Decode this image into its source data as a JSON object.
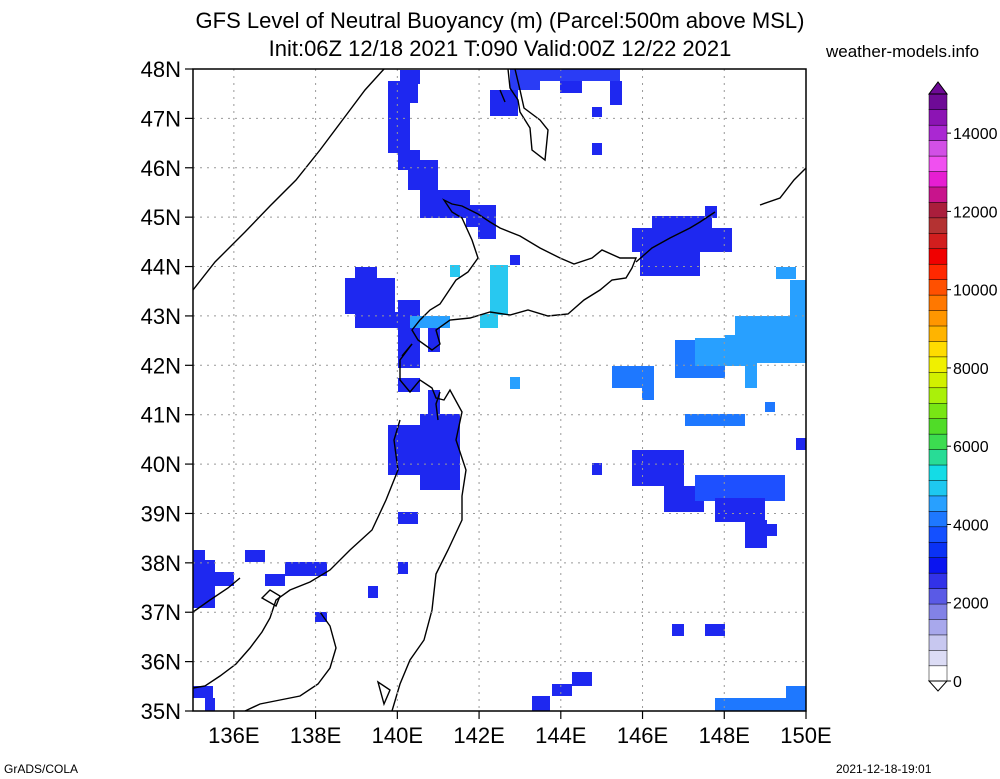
{
  "title_line1": "GFS Level of Neutral Buoyancy (m) (Parcel:500m above MSL)",
  "title_line2": "Init:06Z 12/18 2021 T:090 Valid:00Z 12/22 2021",
  "site": "weather-models.info",
  "footer_left": "GrADS/COLA",
  "footer_right": "2021-12-18-19:01",
  "map": {
    "lon_range": [
      135,
      150
    ],
    "lat_range": [
      35,
      48
    ],
    "lat_ticks": [
      {
        "value": 35,
        "label": "35N"
      },
      {
        "value": 36,
        "label": "36N"
      },
      {
        "value": 37,
        "label": "37N"
      },
      {
        "value": 38,
        "label": "38N"
      },
      {
        "value": 39,
        "label": "39N"
      },
      {
        "value": 40,
        "label": "40N"
      },
      {
        "value": 41,
        "label": "41N"
      },
      {
        "value": 42,
        "label": "42N"
      },
      {
        "value": 43,
        "label": "43N"
      },
      {
        "value": 44,
        "label": "44N"
      },
      {
        "value": 45,
        "label": "45N"
      },
      {
        "value": 46,
        "label": "46N"
      },
      {
        "value": 47,
        "label": "47N"
      },
      {
        "value": 48,
        "label": "48N"
      }
    ],
    "lon_ticks": [
      {
        "value": 136,
        "label": "136E"
      },
      {
        "value": 138,
        "label": "138E"
      },
      {
        "value": 140,
        "label": "140E"
      },
      {
        "value": 142,
        "label": "142E"
      },
      {
        "value": 144,
        "label": "144E"
      },
      {
        "value": 146,
        "label": "146E"
      },
      {
        "value": 148,
        "label": "148E"
      },
      {
        "value": 150,
        "label": "150E"
      }
    ],
    "grid": true
  },
  "colorbar": {
    "labels": [
      {
        "value": 0,
        "label": "0"
      },
      {
        "value": 2000,
        "label": "2000"
      },
      {
        "value": 4000,
        "label": "4000"
      },
      {
        "value": 6000,
        "label": "6000"
      },
      {
        "value": 8000,
        "label": "8000"
      },
      {
        "value": 10000,
        "label": "10000"
      },
      {
        "value": 12000,
        "label": "12000"
      },
      {
        "value": 14000,
        "label": "14000"
      }
    ],
    "colors": [
      "#ffffff",
      "#dcdcf5",
      "#c8c8f0",
      "#a8a8ec",
      "#8282e6",
      "#5a5ae6",
      "#3232e8",
      "#0a14f0",
      "#0a32f5",
      "#1450ff",
      "#1e78ff",
      "#28a0ff",
      "#1ec8f0",
      "#14dce6",
      "#28dc96",
      "#3cdc50",
      "#50dc28",
      "#78e614",
      "#aaf00a",
      "#d2f000",
      "#f0f000",
      "#ffdc00",
      "#ffb400",
      "#ff9600",
      "#ff7800",
      "#ff5000",
      "#ff2800",
      "#f00000",
      "#d21e1e",
      "#b43232",
      "#aa1e3c",
      "#c8148c",
      "#e61ed2",
      "#f050f0",
      "#d250e6",
      "#aa28d2",
      "#8c14b4",
      "#6e0a96"
    ],
    "max": 15000
  }
}
